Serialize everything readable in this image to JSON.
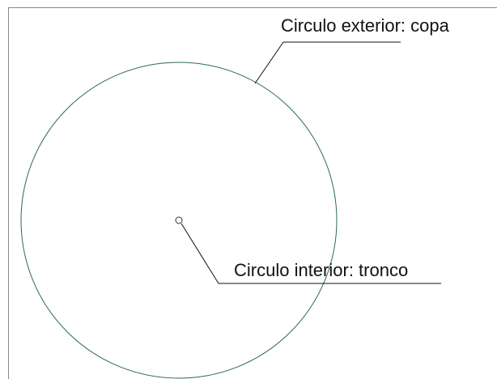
{
  "labels": {
    "outer": "Circulo exterior: copa",
    "inner": "Circulo interior: tronco"
  }
}
